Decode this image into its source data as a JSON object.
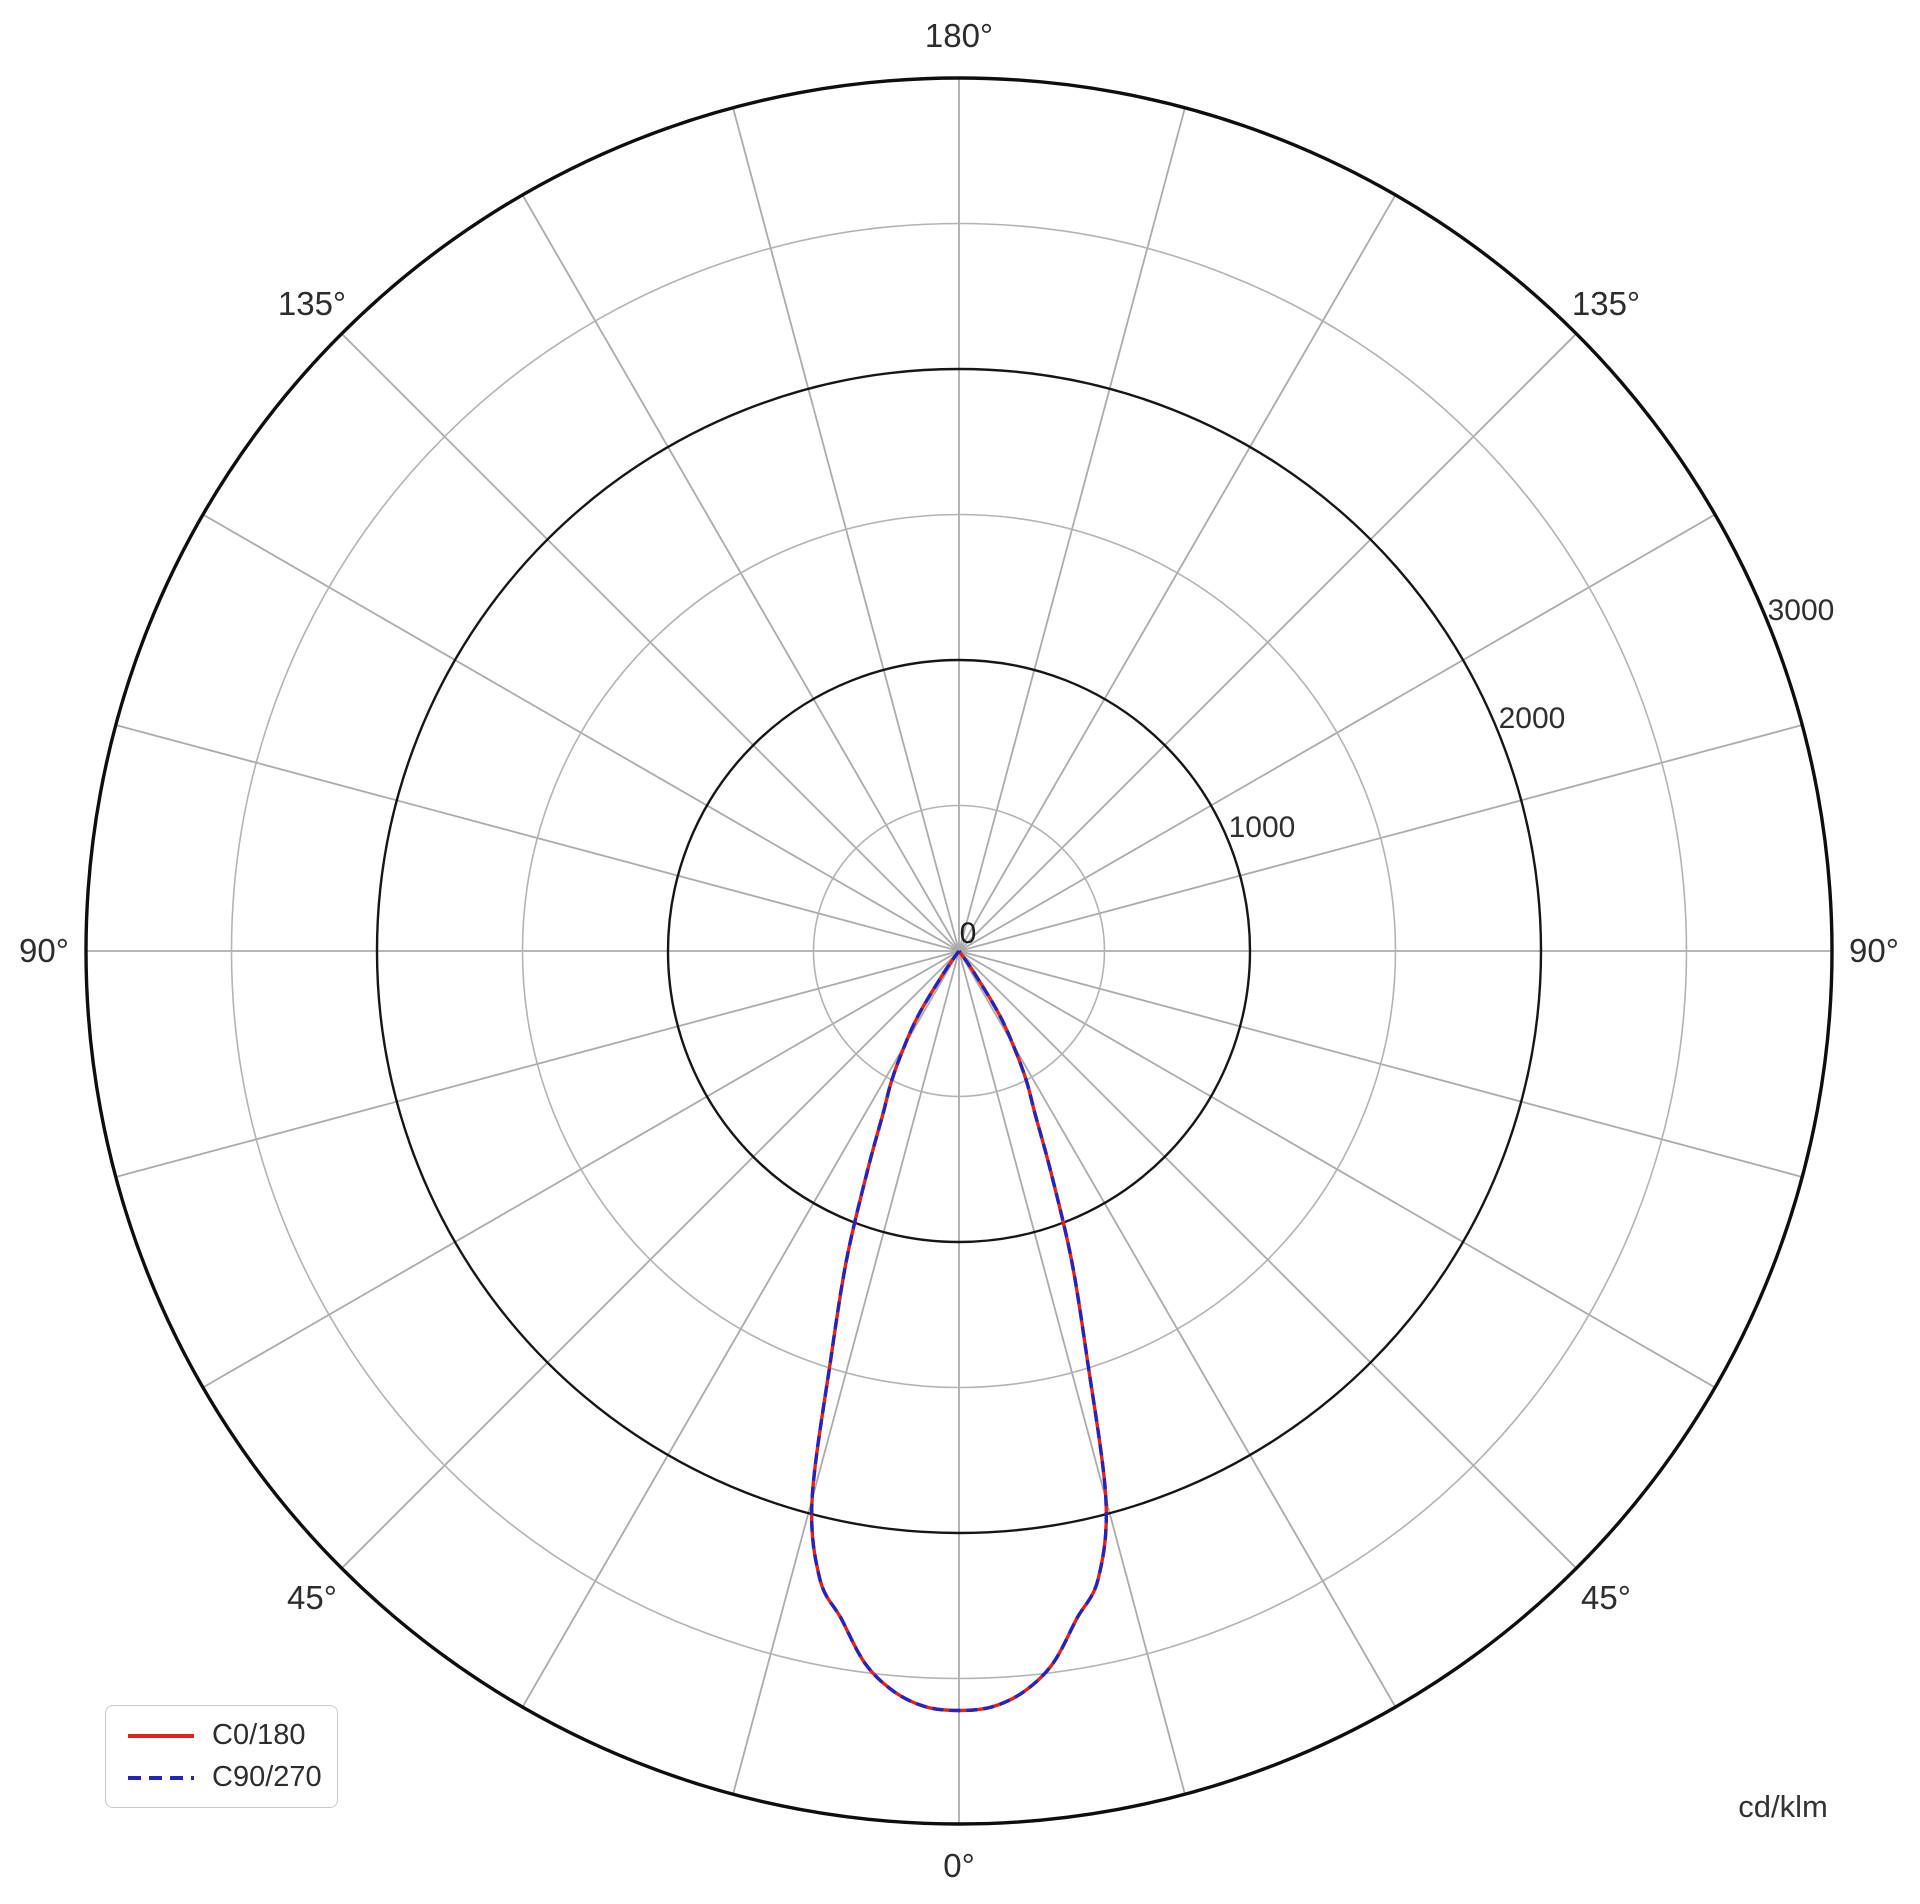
{
  "chart_data": {
    "type": "line",
    "projection": "polar",
    "description": "Luminous intensity distribution (photometric polar curve); 0 deg at bottom, angles increase to 180 deg at top on both sides",
    "units": "cd/klm",
    "r_axis": {
      "min": 0,
      "max": 3000,
      "grid_step": 500,
      "label_step": 1000,
      "tick_labels": {
        "0": "0",
        "1000": "1000",
        "2000": "2000",
        "3000": "3000"
      }
    },
    "theta_axis": {
      "grid_step_deg": 15,
      "label_step_deg": 45,
      "zero_location": "bottom",
      "labels": {
        "bottom": "0°",
        "lower_left": "45°",
        "lower_right": "45°",
        "left": "90°",
        "right": "90°",
        "upper_left": "135°",
        "upper_right": "135°",
        "top": "180°"
      }
    },
    "gamma_deg": [
      0,
      2.5,
      5,
      7.5,
      10,
      12.5,
      15,
      17.5,
      20,
      22.5,
      25,
      27.5,
      30,
      32.5,
      35,
      36
    ],
    "symmetric_about_zero": true,
    "peak_intensity": 2610,
    "series": [
      {
        "name": "C0/180",
        "color": "#e3231a",
        "line_style": "solid",
        "values": [
          2610,
          2600,
          2555,
          2470,
          2330,
          2210,
          1950,
          1460,
          1130,
          830,
          620,
          500,
          370,
          250,
          80,
          0
        ]
      },
      {
        "name": "C90/270",
        "color": "#2424bb",
        "line_style": "dashed",
        "values": [
          2610,
          2600,
          2555,
          2470,
          2330,
          2210,
          1950,
          1460,
          1130,
          830,
          620,
          500,
          370,
          250,
          80,
          0
        ]
      }
    ]
  },
  "legend": {
    "entries": [
      {
        "label": "C0/180",
        "color": "#e3231a",
        "style": "solid"
      },
      {
        "label": "C90/270",
        "color": "#2424bb",
        "style": "dashed"
      }
    ]
  }
}
